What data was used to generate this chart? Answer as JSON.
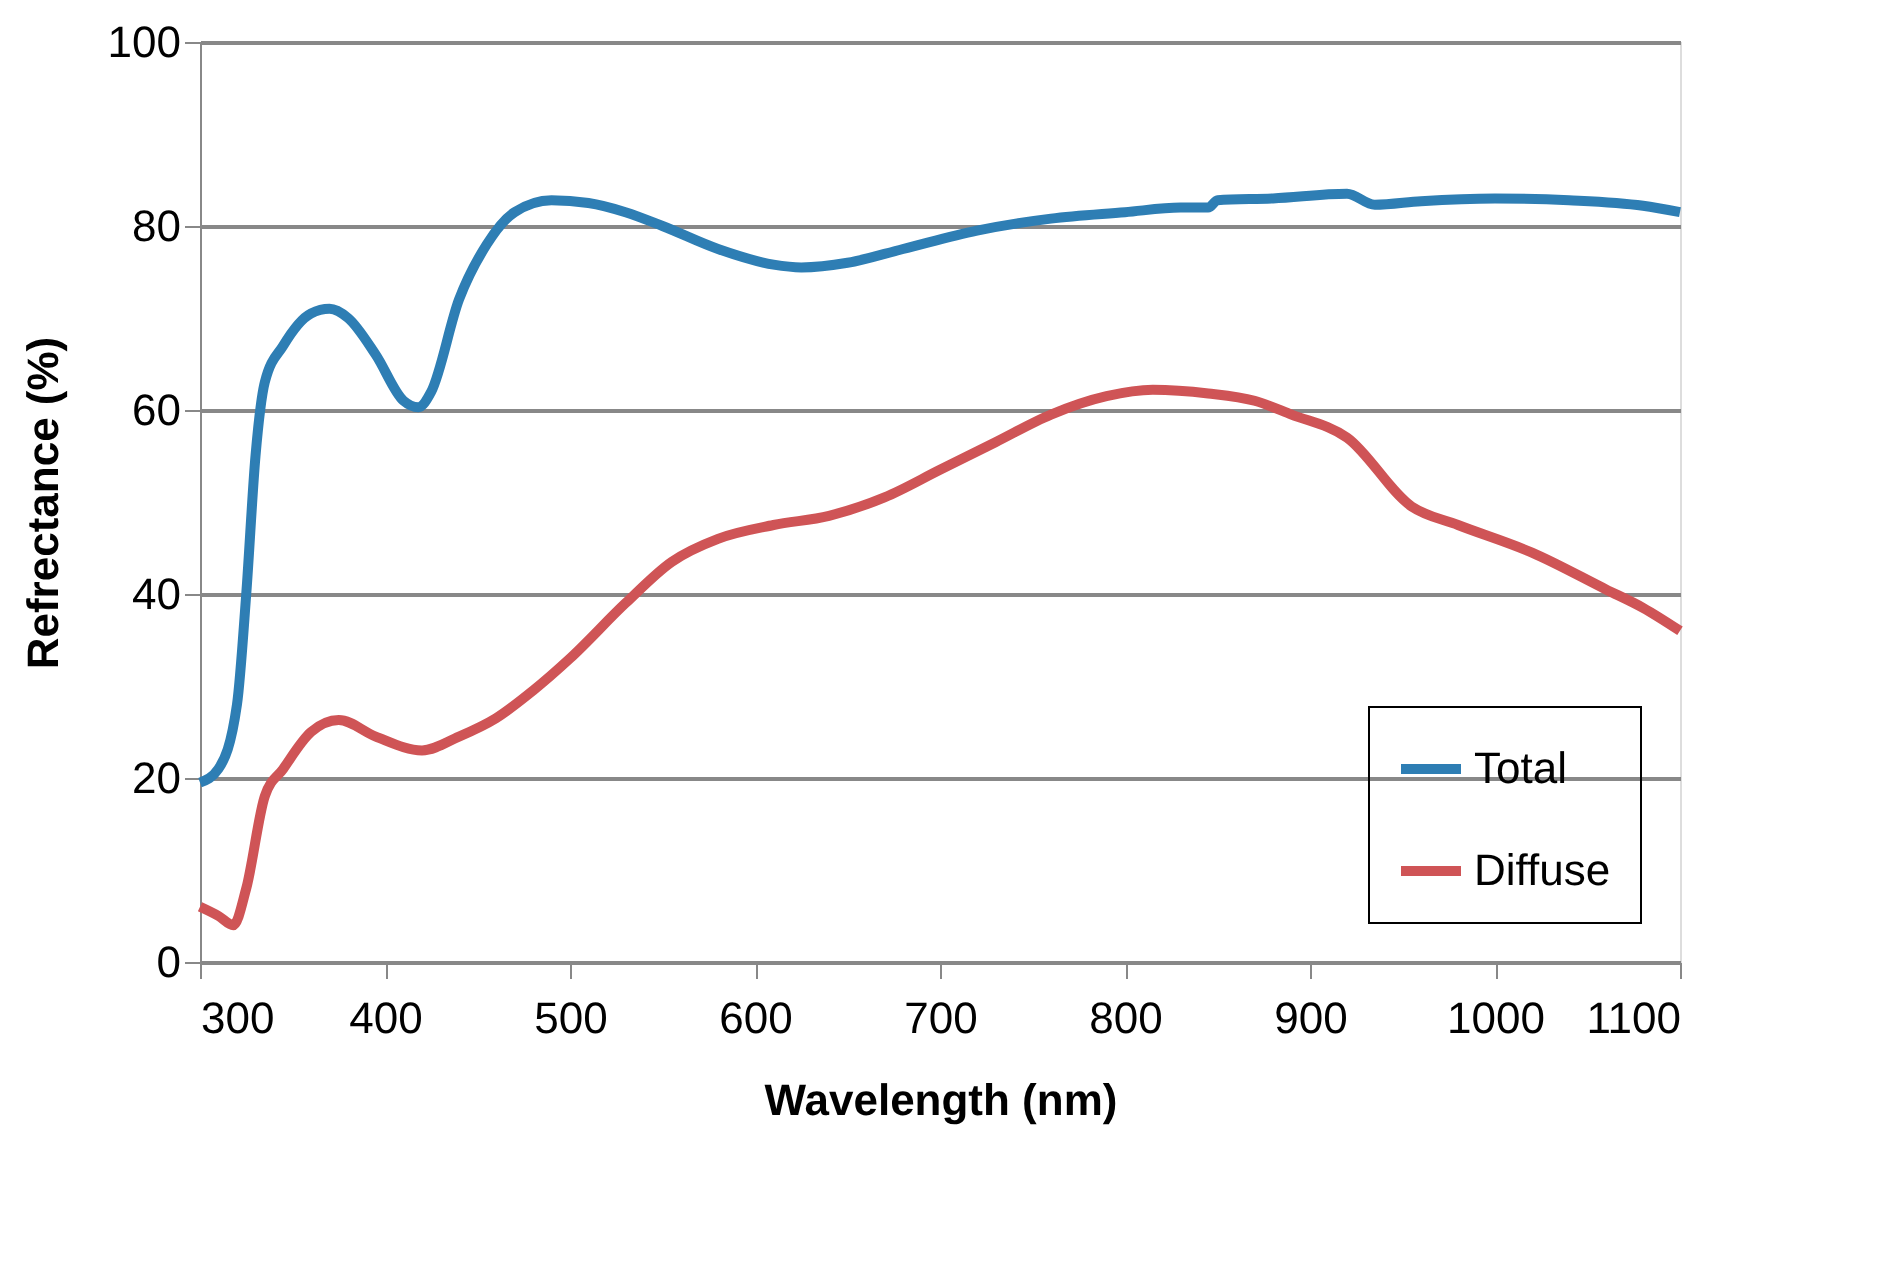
{
  "chart_data": {
    "type": "line",
    "xlabel": "Wavelength (nm)",
    "ylabel": "Refrectance (%)",
    "xlim": [
      300,
      1100
    ],
    "xticks": [
      300,
      400,
      500,
      600,
      700,
      800,
      900,
      1000,
      1100
    ],
    "ylim": [
      0,
      100
    ],
    "yticks": [
      0,
      20,
      40,
      60,
      80,
      100
    ],
    "grid": "y",
    "legend": "bottom right",
    "marker": "none",
    "line_style": "solid",
    "series": [
      {
        "name": "Total",
        "color": "#2e7eb4",
        "x": [
          300,
          310,
          320,
          325,
          330,
          335,
          345,
          360,
          370,
          380,
          395,
          410,
          418,
          425,
          440,
          455,
          470,
          490,
          510,
          530,
          550,
          580,
          610,
          625,
          650,
          680,
          720,
          760,
          800,
          830,
          845,
          850,
          880,
          920,
          935,
          960,
          1000,
          1040,
          1080,
          1100
        ],
        "values": [
          19.5,
          21,
          28,
          40,
          55,
          63,
          67,
          70.5,
          71,
          70,
          66,
          61,
          60.3,
          62,
          72,
          78,
          81.5,
          82.8,
          82.5,
          81.5,
          80,
          77.5,
          75.8,
          75.5,
          76,
          77.5,
          79.5,
          80.8,
          81.5,
          82,
          82,
          82.8,
          83,
          83.5,
          82.3,
          82.7,
          83,
          82.8,
          82.2,
          81.5
        ]
      },
      {
        "name": "Diffuse",
        "color": "#cf5456",
        "x": [
          300,
          310,
          318,
          325,
          335,
          345,
          360,
          375,
          395,
          420,
          440,
          460,
          480,
          500,
          530,
          555,
          580,
          610,
          640,
          670,
          700,
          730,
          760,
          790,
          815,
          845,
          870,
          890,
          920,
          955,
          980,
          1020,
          1060,
          1080,
          1100
        ],
        "values": [
          6,
          5,
          4,
          8,
          18,
          21,
          25,
          26.3,
          24.5,
          23,
          24.5,
          26.5,
          29.5,
          33,
          39,
          43.5,
          46,
          47.5,
          48.5,
          50.5,
          53.5,
          56.5,
          59.5,
          61.5,
          62.2,
          61.8,
          61,
          59.5,
          57,
          49.5,
          47.5,
          44.5,
          40.5,
          38.5,
          36
        ]
      }
    ]
  }
}
